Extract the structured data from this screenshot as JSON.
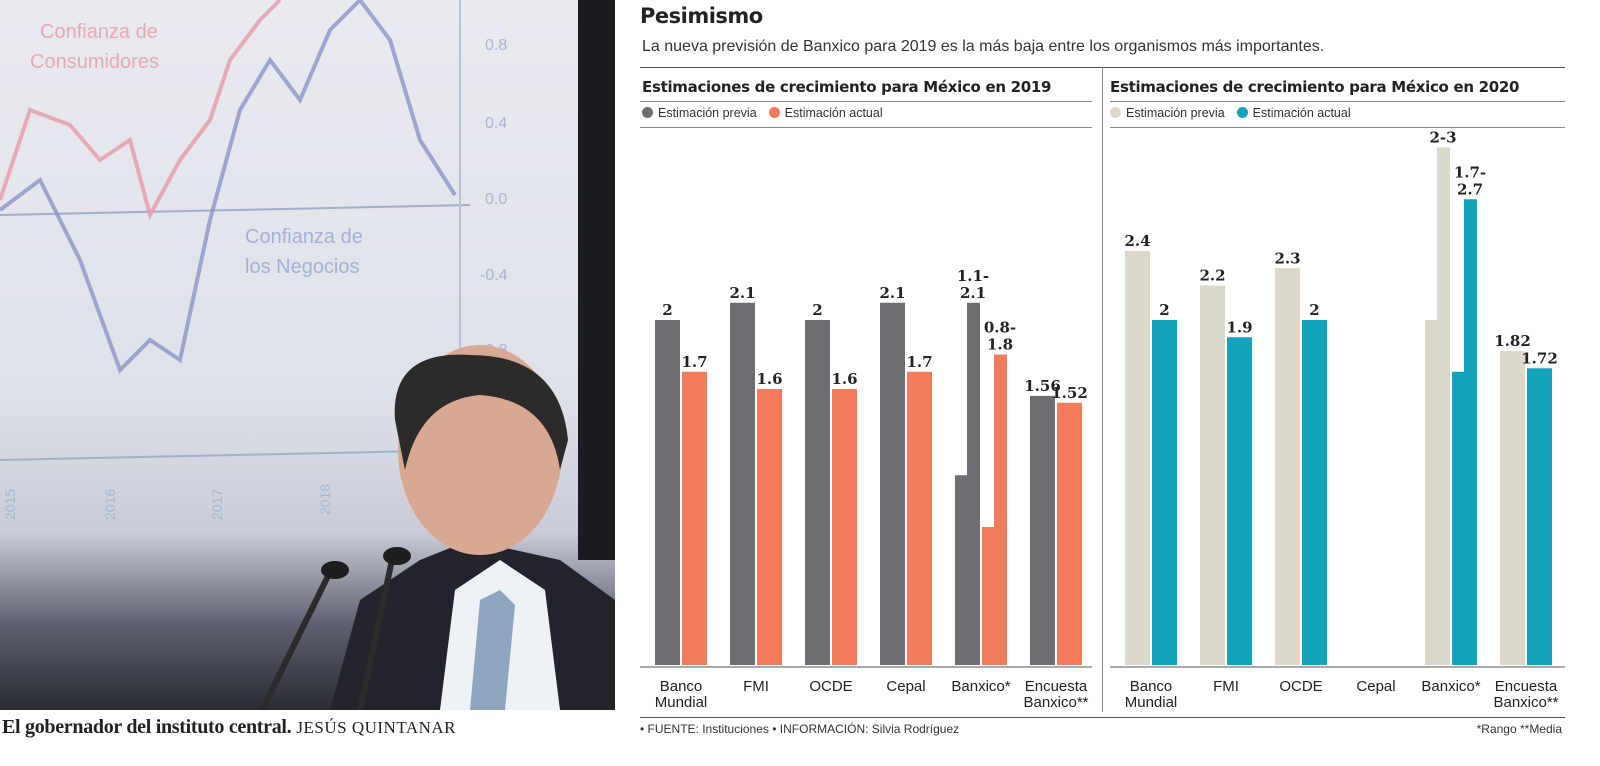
{
  "photo": {
    "caption_bold": "El gobernador del instituto central.",
    "credit": "JESÚS QUINTANAR",
    "screen_labels": [
      "Confianza de Consumidores",
      "Confianza de los Negocios"
    ],
    "screen_ticks": [
      "0.8",
      "0.4",
      "0.0",
      "-0.4",
      "-0.8"
    ],
    "screen_years": [
      "2015",
      "2016",
      "2017",
      "2018"
    ]
  },
  "header": {
    "title": "Pesimismo",
    "subtitle": "La nueva previsión de Banxico para 2019 es la más baja entre los organismos más importantes."
  },
  "colors": {
    "prev_2019": "#6d6e72",
    "curr_2019": "#f27b5b",
    "prev_2020": "#dcd9ca",
    "curr_2020": "#12a3bb"
  },
  "chart_data": [
    {
      "type": "bar",
      "title": "Estimaciones de crecimiento para México en 2019",
      "categories": [
        "Banco Mundial",
        "FMI",
        "OCDE",
        "Cepal",
        "Banxico*",
        "Encuesta Banxico**"
      ],
      "series": [
        {
          "name": "Estimación previa",
          "values": [
            2,
            2.1,
            2,
            2.1,
            [
              1.1,
              2.1
            ],
            1.56
          ],
          "labels": [
            "2",
            "2.1",
            "2",
            "2.1",
            "1.1-\n2.1",
            "1.56"
          ]
        },
        {
          "name": "Estimación actual",
          "values": [
            1.7,
            1.6,
            1.6,
            1.7,
            [
              0.8,
              1.8
            ],
            1.52
          ],
          "labels": [
            "1.7",
            "1.6",
            "1.6",
            "1.7",
            "0.8-\n1.8",
            "1.52"
          ]
        }
      ],
      "ylim": [
        0,
        3.1
      ],
      "grid": false,
      "legend": "top-left"
    },
    {
      "type": "bar",
      "title": "Estimaciones de crecimiento para México en 2020",
      "categories": [
        "Banco Mundial",
        "FMI",
        "OCDE",
        "Cepal",
        "Banxico*",
        "Encuesta Banxico**"
      ],
      "series": [
        {
          "name": "Estimación previa",
          "values": [
            2.4,
            2.2,
            2.3,
            null,
            [
              2,
              3
            ],
            1.82
          ],
          "labels": [
            "2.4",
            "2.2",
            "2.3",
            "",
            "2-3",
            "1.82"
          ]
        },
        {
          "name": "Estimación actual",
          "values": [
            2,
            1.9,
            2,
            null,
            [
              1.7,
              2.7
            ],
            1.72
          ],
          "labels": [
            "2",
            "1.9",
            "2",
            "",
            "1.7-\n2.7",
            "1.72"
          ]
        }
      ],
      "ylim": [
        0,
        3.1
      ],
      "grid": false,
      "legend": "top-left"
    }
  ],
  "footer": {
    "source": "• FUENTE: Instituciones • INFORMACIÓN: Silvia Rodríguez",
    "notes": "*Rango  **Media"
  }
}
